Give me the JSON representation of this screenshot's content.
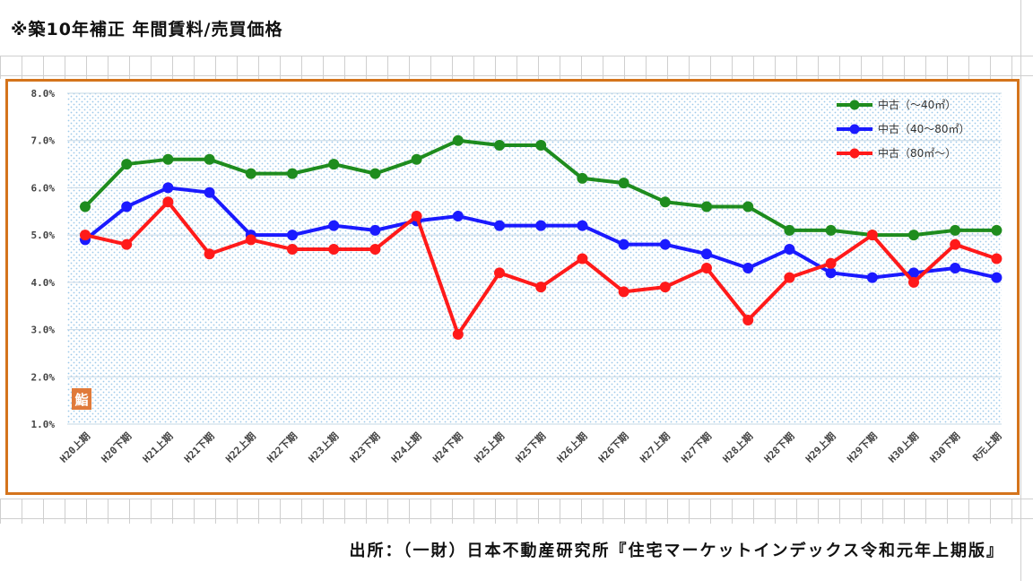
{
  "header": {
    "title": "※築10年補正 年間賃料/売買価格"
  },
  "source": {
    "text": "出所：（一財）日本不動産研究所『住宅マーケットインデックス令和元年上期版』"
  },
  "badge": {
    "glyph": "鮨"
  },
  "chart_data": {
    "type": "line",
    "title": "",
    "xlabel": "",
    "ylabel": "",
    "ylim": [
      1.0,
      8.0
    ],
    "yticks": [
      "1.0%",
      "2.0%",
      "3.0%",
      "4.0%",
      "5.0%",
      "6.0%",
      "7.0%",
      "8.0%"
    ],
    "grid": true,
    "legend_position": "top-right",
    "categories": [
      "H20上期",
      "H20下期",
      "H21上期",
      "H21下期",
      "H22上期",
      "H22下期",
      "H23上期",
      "H23下期",
      "H24上期",
      "H24下期",
      "H25上期",
      "H25下期",
      "H26上期",
      "H26下期",
      "H27上期",
      "H27下期",
      "H28上期",
      "H28下期",
      "H29上期",
      "H29下期",
      "H30上期",
      "H30下期",
      "R元上期"
    ],
    "series": [
      {
        "name": "中古（～40㎡）",
        "color": "#1e8c1e",
        "values": [
          5.6,
          6.5,
          6.6,
          6.6,
          6.3,
          6.3,
          6.5,
          6.3,
          6.6,
          7.0,
          6.9,
          6.9,
          6.2,
          6.1,
          5.7,
          5.6,
          5.6,
          5.1,
          5.1,
          5.0,
          5.0,
          5.1,
          5.1
        ]
      },
      {
        "name": "中古（40～80㎡）",
        "color": "#1a1aff",
        "values": [
          4.9,
          5.6,
          6.0,
          5.9,
          5.0,
          5.0,
          5.2,
          5.1,
          5.3,
          5.4,
          5.2,
          5.2,
          5.2,
          4.8,
          4.8,
          4.6,
          4.3,
          4.7,
          4.2,
          4.1,
          4.2,
          4.3,
          4.1
        ]
      },
      {
        "name": "中古（80㎡～）",
        "color": "#ff1a1a",
        "values": [
          5.0,
          4.8,
          5.7,
          4.6,
          4.9,
          4.7,
          4.7,
          4.7,
          5.4,
          2.9,
          4.2,
          3.9,
          4.5,
          3.8,
          3.9,
          4.3,
          3.2,
          4.1,
          4.4,
          5.0,
          4.0,
          4.8,
          4.5
        ]
      }
    ]
  }
}
